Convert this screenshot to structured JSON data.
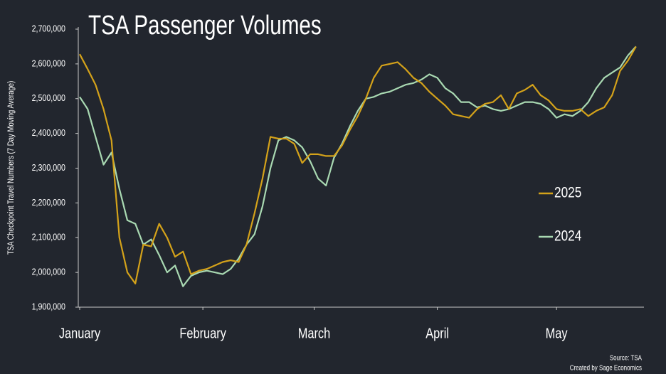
{
  "chart_data": {
    "type": "line",
    "title": "TSA Passenger Volumes",
    "y_label": "TSA Checkpoint Travel Numbers (7 Day Moving Average)",
    "source": "Source: TSA",
    "credit": "Created by Sage Economics",
    "x": [
      1,
      3,
      5,
      7,
      9,
      11,
      13,
      15,
      17,
      19,
      21,
      23,
      25,
      27,
      29,
      31,
      33,
      35,
      37,
      39,
      41,
      43,
      45,
      47,
      49,
      51,
      53,
      55,
      57,
      59,
      61,
      63,
      65,
      67,
      69,
      71,
      73,
      75,
      77,
      79,
      81,
      83,
      85,
      87,
      89,
      91,
      93,
      95,
      97,
      99,
      101,
      103,
      105,
      107,
      109,
      111,
      113,
      115,
      117,
      119,
      121,
      123,
      125,
      127,
      129,
      131,
      133,
      135,
      137,
      139,
      141
    ],
    "xlim": [
      1,
      143
    ],
    "xticks": [
      {
        "value": 1,
        "label": "January"
      },
      {
        "value": 32,
        "label": "February"
      },
      {
        "value": 60,
        "label": "March"
      },
      {
        "value": 91,
        "label": "April"
      },
      {
        "value": 121,
        "label": "May"
      }
    ],
    "ylim": [
      1900000,
      2700000
    ],
    "yticks": [
      {
        "value": 1900000,
        "label": "1,900,000"
      },
      {
        "value": 2000000,
        "label": "2,000,000"
      },
      {
        "value": 2100000,
        "label": "2,100,000"
      },
      {
        "value": 2200000,
        "label": "2,200,000"
      },
      {
        "value": 2300000,
        "label": "2,300,000"
      },
      {
        "value": 2400000,
        "label": "2,400,000"
      },
      {
        "value": 2500000,
        "label": "2,500,000"
      },
      {
        "value": 2600000,
        "label": "2,600,000"
      },
      {
        "value": 2700000,
        "label": "2,700,000"
      }
    ],
    "legend": "right",
    "series": [
      {
        "name": "2025",
        "color": "#d4a21a",
        "values": [
          2628000,
          2585000,
          2540000,
          2470000,
          2380000,
          2100000,
          2000000,
          1968000,
          2080000,
          2075000,
          2140000,
          2100000,
          2045000,
          2060000,
          1995000,
          2005000,
          2010000,
          2020000,
          2030000,
          2035000,
          2030000,
          2080000,
          2170000,
          2270000,
          2390000,
          2385000,
          2385000,
          2370000,
          2315000,
          2340000,
          2340000,
          2335000,
          2335000,
          2365000,
          2410000,
          2450000,
          2500000,
          2560000,
          2595000,
          2600000,
          2605000,
          2585000,
          2560000,
          2545000,
          2520000,
          2500000,
          2480000,
          2455000,
          2450000,
          2445000,
          2470000,
          2485000,
          2490000,
          2510000,
          2470000,
          2515000,
          2525000,
          2540000,
          2510000,
          2495000,
          2470000,
          2465000,
          2465000,
          2470000,
          2450000,
          2465000,
          2475000,
          2510000,
          2580000,
          2610000,
          2650000
        ]
      },
      {
        "name": "2024",
        "color": "#a9d9b2",
        "values": [
          2505000,
          2470000,
          2390000,
          2310000,
          2345000,
          2240000,
          2150000,
          2140000,
          2080000,
          2095000,
          2050000,
          2000000,
          2020000,
          1960000,
          1990000,
          2000000,
          2005000,
          2000000,
          1995000,
          2010000,
          2040000,
          2080000,
          2110000,
          2190000,
          2300000,
          2380000,
          2390000,
          2380000,
          2360000,
          2320000,
          2270000,
          2250000,
          2330000,
          2370000,
          2420000,
          2465000,
          2500000,
          2505000,
          2515000,
          2520000,
          2530000,
          2540000,
          2545000,
          2555000,
          2570000,
          2560000,
          2530000,
          2515000,
          2490000,
          2490000,
          2475000,
          2480000,
          2470000,
          2465000,
          2470000,
          2480000,
          2490000,
          2490000,
          2485000,
          2470000,
          2445000,
          2455000,
          2450000,
          2465000,
          2490000,
          2530000,
          2560000,
          2575000,
          2590000,
          2625000,
          2650000
        ]
      }
    ]
  }
}
